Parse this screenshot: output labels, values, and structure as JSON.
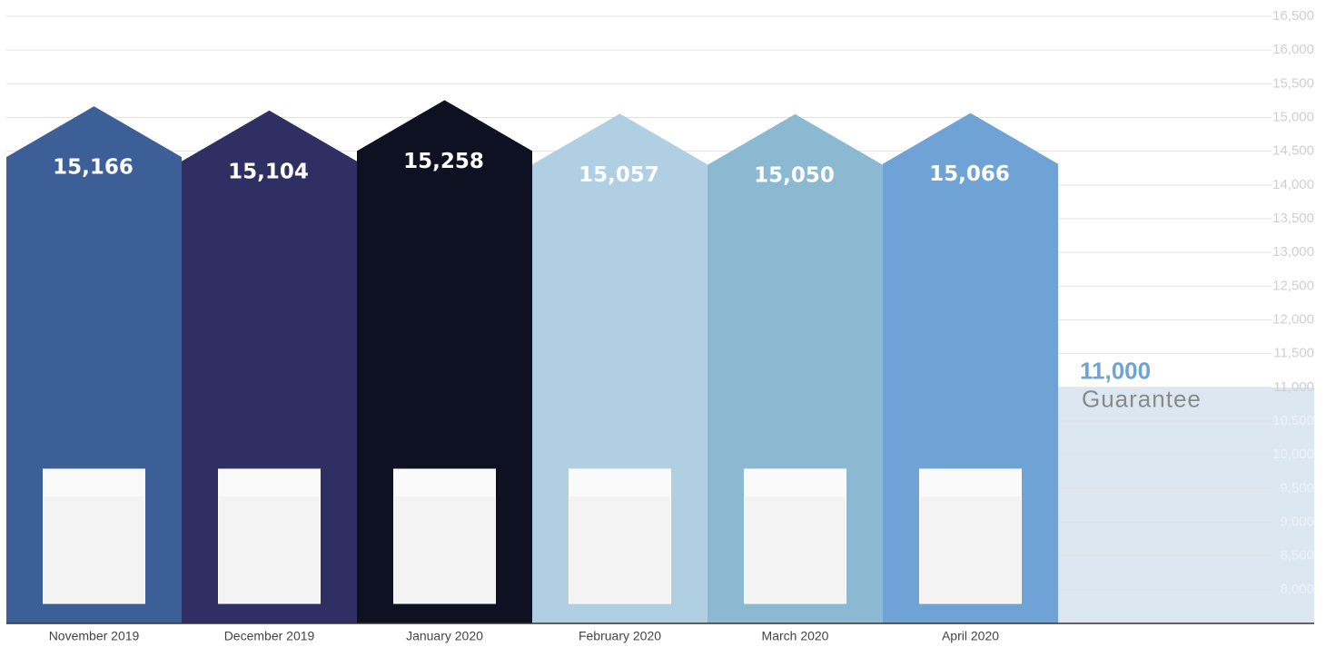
{
  "chart_data": {
    "type": "bar",
    "categories": [
      "November 2019",
      "December 2019",
      "January 2020",
      "February 2020",
      "March 2020",
      "April 2020"
    ],
    "values": [
      15166,
      15104,
      15258,
      15057,
      15050,
      15066
    ],
    "value_labels": [
      "15,166",
      "15,104",
      "15,258",
      "15,057",
      "15,050",
      "15,066"
    ],
    "colors": [
      "#3c5f97",
      "#2f2f63",
      "#0d1122",
      "#b0cfe3",
      "#8ab9d1",
      "#6fa3d6"
    ],
    "ylim": [
      7500,
      16500
    ],
    "yticks": [
      {
        "value": 8000,
        "label": "8,000"
      },
      {
        "value": 8500,
        "label": "8,500"
      },
      {
        "value": 9000,
        "label": "9,000"
      },
      {
        "value": 9500,
        "label": "9,500"
      },
      {
        "value": 10000,
        "label": "10,000"
      },
      {
        "value": 10500,
        "label": "10,500"
      },
      {
        "value": 11000,
        "label": "11,000"
      },
      {
        "value": 11500,
        "label": "11,500"
      },
      {
        "value": 12000,
        "label": "12,000"
      },
      {
        "value": 12500,
        "label": "12,500"
      },
      {
        "value": 13000,
        "label": "13,000"
      },
      {
        "value": 13500,
        "label": "13,500"
      },
      {
        "value": 14000,
        "label": "14,000"
      },
      {
        "value": 14500,
        "label": "14,500"
      },
      {
        "value": 15000,
        "label": "15,000"
      },
      {
        "value": 15500,
        "label": "15,500"
      },
      {
        "value": 16000,
        "label": "16,000"
      },
      {
        "value": 16500,
        "label": "16,500"
      }
    ],
    "grid": true,
    "guarantee": {
      "value": 11000,
      "value_label": "11,000",
      "label": "Guarantee",
      "color": "#dde7f2"
    }
  }
}
